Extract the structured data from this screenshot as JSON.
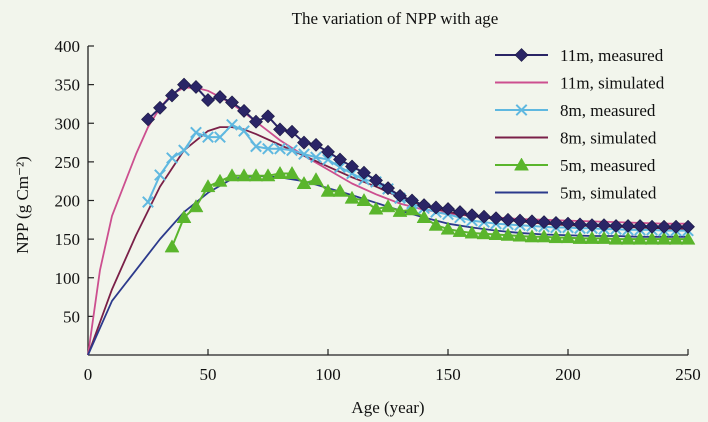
{
  "chart_data": {
    "type": "line",
    "title": "The variation of NPP with age",
    "xlabel": "Age (year)",
    "ylabel": "NPP (g Cm⁻²)",
    "xlim": [
      0,
      250
    ],
    "ylim": [
      0,
      400
    ],
    "x_ticks": [
      0,
      50,
      100,
      150,
      200,
      250
    ],
    "y_ticks": [
      50,
      100,
      150,
      200,
      250,
      300,
      350,
      400
    ],
    "grid": false,
    "legend_position": "top-right",
    "series": [
      {
        "name": "11m, measured",
        "style": "line-markers",
        "marker": "diamond",
        "color": "#2a2566",
        "x": [
          25,
          30,
          35,
          40,
          45,
          50,
          55,
          60,
          65,
          70,
          75,
          80,
          85,
          90,
          95,
          100,
          105,
          110,
          115,
          120,
          125,
          130,
          135,
          140,
          145,
          150,
          155,
          160,
          165,
          170,
          175,
          180,
          185,
          190,
          195,
          200,
          205,
          210,
          215,
          220,
          225,
          230,
          235,
          240,
          245,
          250
        ],
        "y": [
          305,
          320,
          336,
          350,
          347,
          330,
          334,
          327,
          316,
          302,
          309,
          292,
          289,
          275,
          272,
          263,
          253,
          244,
          236,
          226,
          216,
          206,
          200,
          194,
          191,
          189,
          185,
          181,
          179,
          177,
          175,
          174,
          173,
          172,
          171,
          170,
          169,
          168,
          168,
          167,
          167,
          167,
          166,
          166,
          166,
          166
        ]
      },
      {
        "name": "11m, simulated",
        "style": "line",
        "color": "#cc4f8f",
        "x": [
          0,
          5,
          10,
          15,
          20,
          25,
          30,
          35,
          40,
          45,
          50,
          55,
          60,
          65,
          70,
          75,
          80,
          90,
          100,
          110,
          120,
          130,
          140,
          150,
          160,
          170,
          180,
          190,
          200,
          210,
          220,
          230,
          240,
          250
        ],
        "y": [
          0,
          110,
          180,
          220,
          260,
          295,
          320,
          338,
          346,
          346,
          342,
          334,
          325,
          314,
          302,
          290,
          278,
          258,
          240,
          222,
          208,
          196,
          188,
          183,
          180,
          178,
          176,
          175,
          174,
          173,
          172,
          171,
          170,
          170
        ]
      },
      {
        "name": "8m, measured",
        "style": "line-markers",
        "marker": "x",
        "color": "#5fb8e0",
        "x": [
          25,
          30,
          35,
          40,
          45,
          50,
          55,
          60,
          65,
          70,
          75,
          80,
          85,
          90,
          95,
          100,
          105,
          110,
          115,
          120,
          125,
          130,
          135,
          140,
          145,
          150,
          155,
          160,
          165,
          170,
          175,
          180,
          185,
          190,
          195,
          200,
          205,
          210,
          215,
          220,
          225,
          230,
          235,
          240,
          245,
          250
        ],
        "y": [
          198,
          233,
          255,
          265,
          288,
          282,
          282,
          298,
          290,
          270,
          267,
          267,
          265,
          260,
          256,
          253,
          243,
          235,
          227,
          224,
          215,
          203,
          196,
          190,
          185,
          182,
          178,
          174,
          172,
          170,
          169,
          168,
          167,
          166,
          165,
          165,
          164,
          164,
          163,
          163,
          162,
          162,
          162,
          161,
          161,
          161
        ]
      },
      {
        "name": "8m, simulated",
        "style": "line",
        "color": "#7a2048",
        "x": [
          0,
          10,
          20,
          30,
          40,
          50,
          55,
          60,
          65,
          70,
          80,
          90,
          100,
          110,
          120,
          130,
          140,
          150,
          160,
          170,
          180,
          190,
          200,
          210,
          220,
          230,
          240,
          250
        ],
        "y": [
          0,
          85,
          155,
          218,
          265,
          290,
          295,
          295,
          292,
          286,
          272,
          258,
          244,
          230,
          218,
          204,
          193,
          185,
          180,
          176,
          173,
          170,
          168,
          167,
          166,
          165,
          164,
          163
        ]
      },
      {
        "name": "5m, measured",
        "style": "line-markers",
        "marker": "triangle",
        "color": "#5ab52c",
        "x": [
          35,
          40,
          45,
          50,
          55,
          60,
          65,
          70,
          75,
          80,
          85,
          90,
          95,
          100,
          105,
          110,
          115,
          120,
          125,
          130,
          135,
          140,
          145,
          150,
          155,
          160,
          165,
          170,
          175,
          180,
          185,
          190,
          195,
          200,
          205,
          210,
          215,
          220,
          225,
          230,
          235,
          240,
          245,
          250
        ],
        "y": [
          140,
          178,
          192,
          218,
          225,
          232,
          232,
          232,
          232,
          235,
          235,
          222,
          227,
          212,
          212,
          203,
          200,
          189,
          192,
          186,
          188,
          178,
          168,
          163,
          160,
          158,
          157,
          156,
          155,
          154,
          153,
          153,
          152,
          152,
          151,
          151,
          151,
          150,
          150,
          150,
          150,
          150,
          150,
          150
        ]
      },
      {
        "name": "5m, simulated",
        "style": "line",
        "color": "#2c3a8c",
        "x": [
          0,
          10,
          20,
          30,
          40,
          50,
          60,
          70,
          80,
          90,
          100,
          110,
          120,
          130,
          140,
          150,
          160,
          170,
          180,
          190,
          200,
          210,
          220,
          230,
          240,
          250
        ],
        "y": [
          0,
          70,
          110,
          150,
          185,
          210,
          228,
          232,
          230,
          225,
          216,
          207,
          197,
          187,
          178,
          170,
          165,
          161,
          158,
          156,
          155,
          154,
          154,
          153,
          153,
          153
        ]
      }
    ]
  }
}
